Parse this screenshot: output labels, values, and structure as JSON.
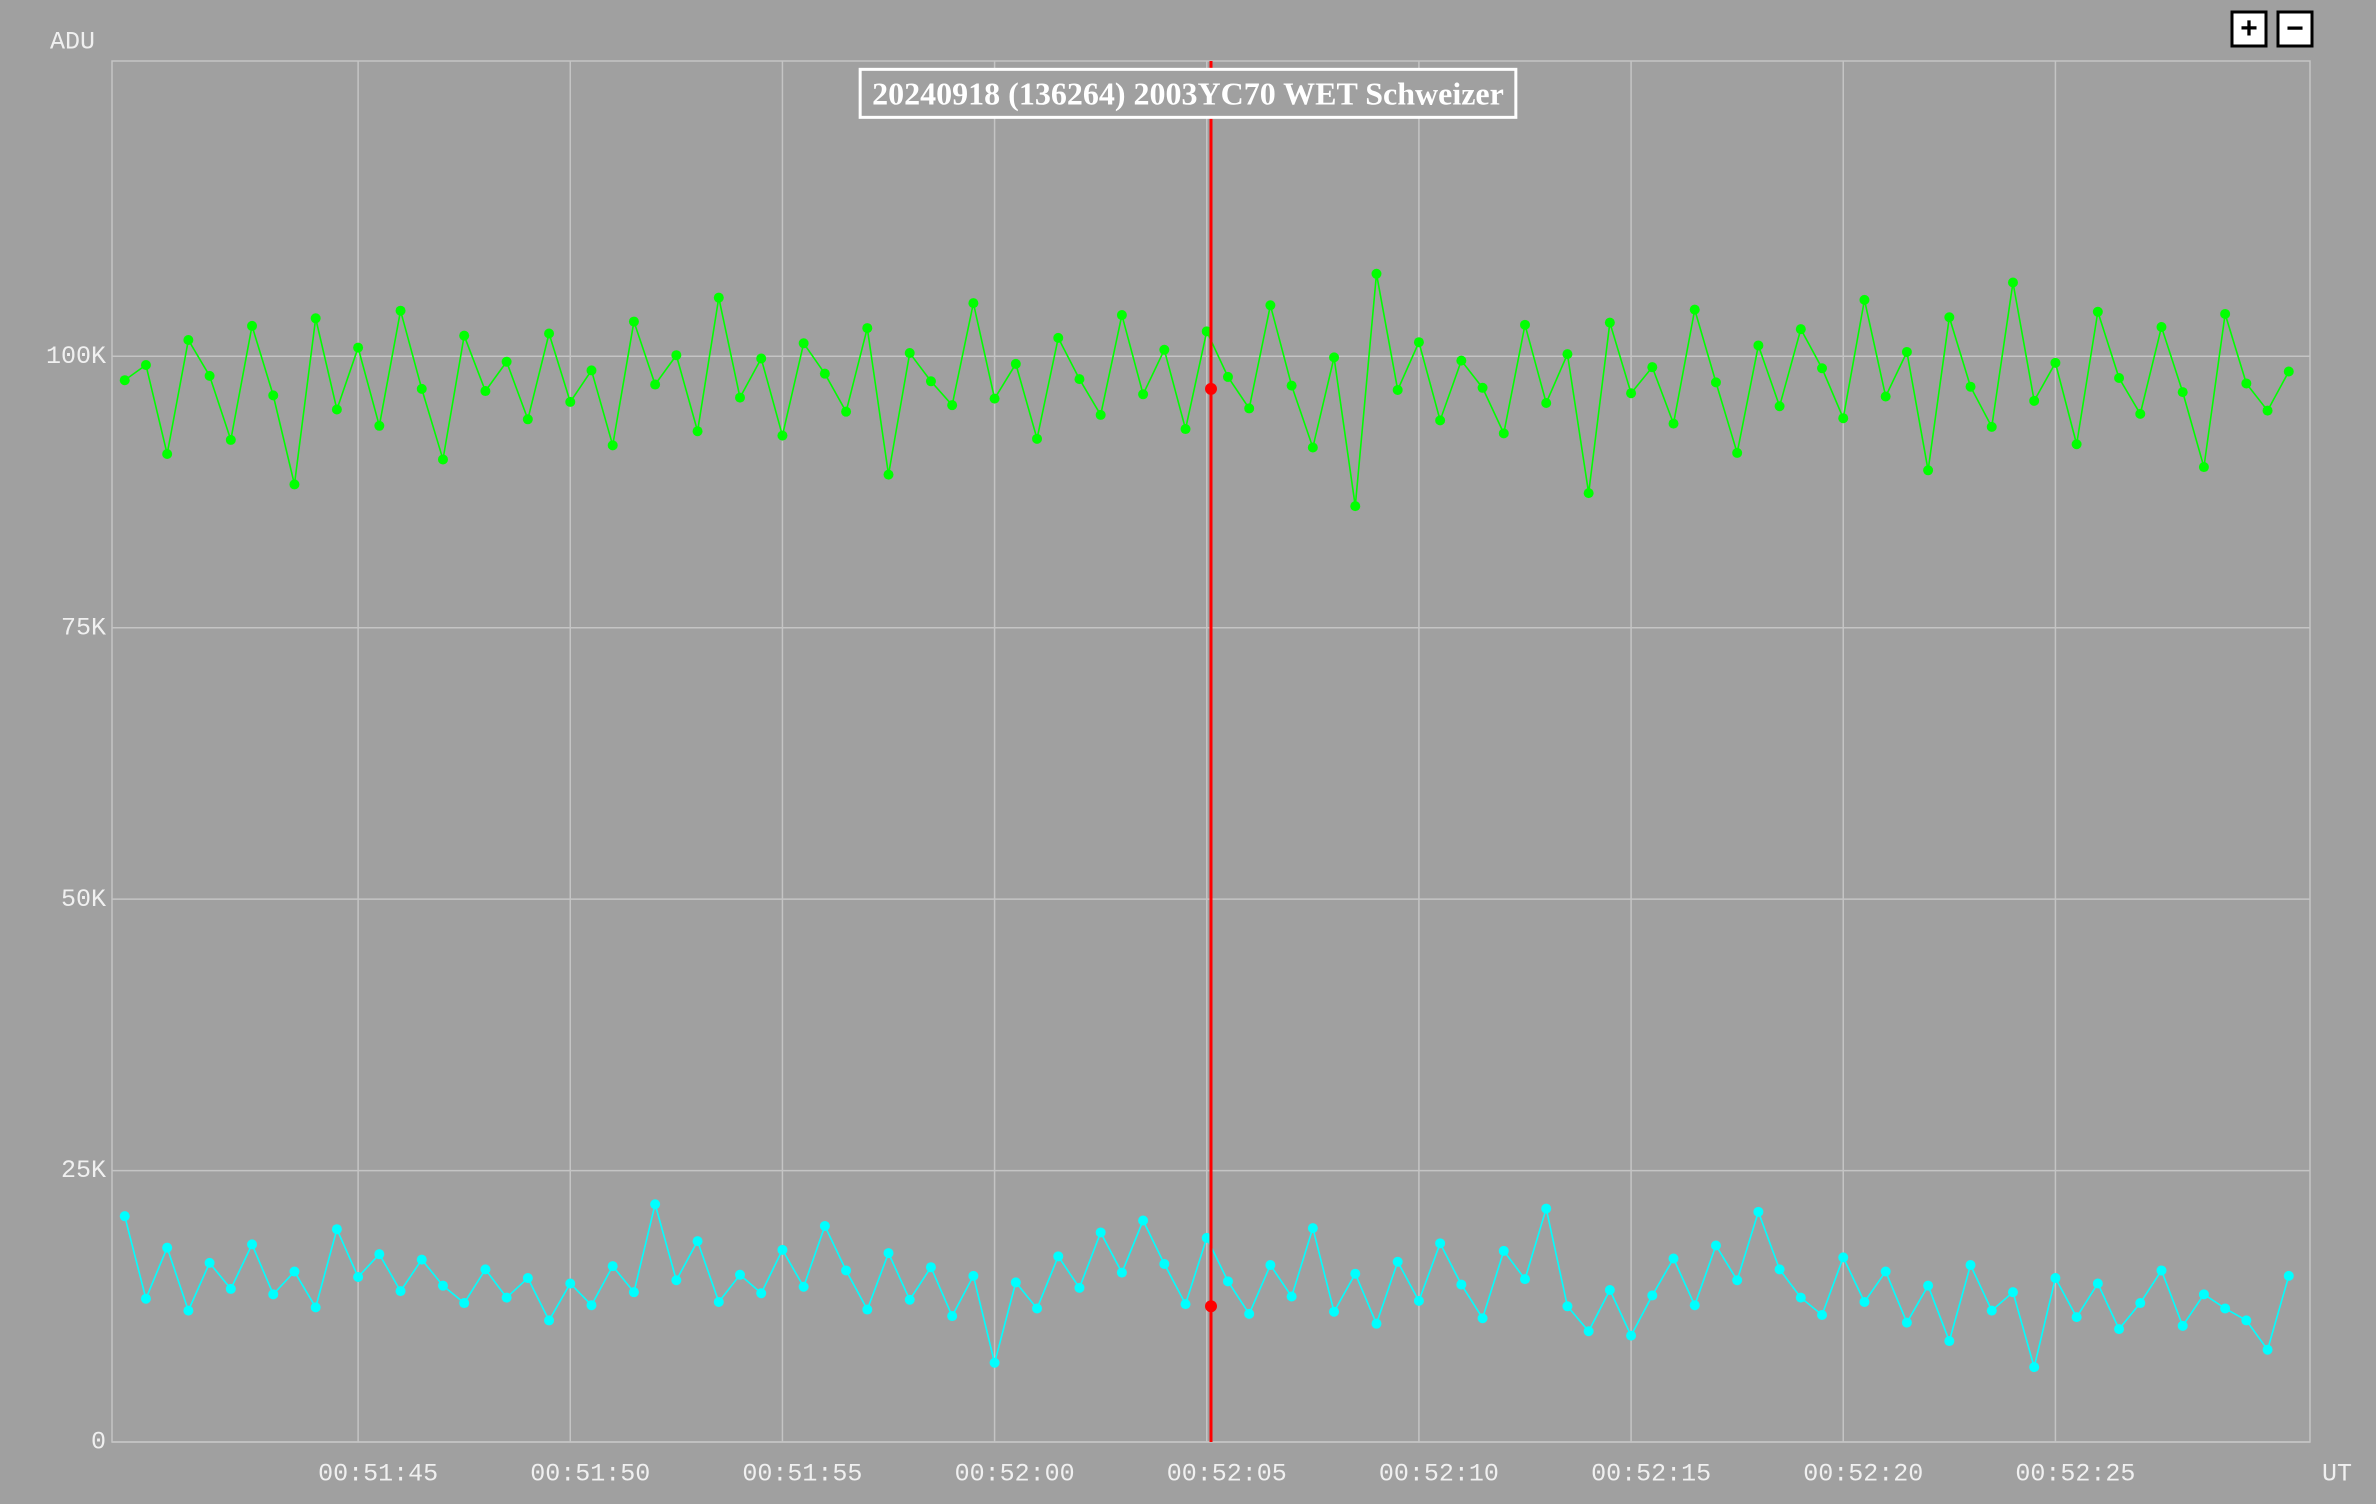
{
  "chart_data": {
    "type": "line",
    "title": "20240918 (136264) 2003YC70 WET Schweizer",
    "y_label": "ADU",
    "x_label": "UT",
    "xlim": [
      3099.2,
      3151
    ],
    "ylim": [
      0,
      127200
    ],
    "xticks": [
      {
        "value": 3105,
        "label": "00:51:45"
      },
      {
        "value": 3110,
        "label": "00:51:50"
      },
      {
        "value": 3115,
        "label": "00:51:55"
      },
      {
        "value": 3120,
        "label": "00:52:00"
      },
      {
        "value": 3125,
        "label": "00:52:05"
      },
      {
        "value": 3130,
        "label": "00:52:10"
      },
      {
        "value": 3135,
        "label": "00:52:15"
      },
      {
        "value": 3140,
        "label": "00:52:20"
      },
      {
        "value": 3145,
        "label": "00:52:25"
      }
    ],
    "yticks": [
      0,
      {
        "value": 25000,
        "label": "25K"
      },
      {
        "value": 50000,
        "label": "50K"
      },
      {
        "value": 75000,
        "label": "75K"
      },
      {
        "value": 100000,
        "label": "100K"
      }
    ],
    "grid": true,
    "markers": true,
    "x": [
      3099.5,
      3100,
      3100.5,
      3101,
      3101.5,
      3102,
      3102.5,
      3103,
      3103.5,
      3104,
      3104.5,
      3105,
      3105.5,
      3106,
      3106.5,
      3107,
      3107.5,
      3108,
      3108.5,
      3109,
      3109.5,
      3110,
      3110.5,
      3111,
      3111.5,
      3112,
      3112.5,
      3113,
      3113.5,
      3114,
      3114.5,
      3115,
      3115.5,
      3116,
      3116.5,
      3117,
      3117.5,
      3118,
      3118.5,
      3119,
      3119.5,
      3120,
      3120.5,
      3121,
      3121.5,
      3122,
      3122.5,
      3123,
      3123.5,
      3124,
      3124.5,
      3125,
      3125.5,
      3126,
      3126.5,
      3127,
      3127.5,
      3128,
      3128.5,
      3129,
      3129.5,
      3130,
      3130.5,
      3131,
      3131.5,
      3132,
      3132.5,
      3133,
      3133.5,
      3134,
      3134.5,
      3135,
      3135.5,
      3136,
      3136.5,
      3137,
      3137.5,
      3138,
      3138.5,
      3139,
      3139.5,
      3140,
      3140.5,
      3141,
      3141.5,
      3142,
      3142.5,
      3143,
      3143.5,
      3144,
      3144.5,
      3145,
      3145.5,
      3146,
      3146.5,
      3147,
      3147.5,
      3148,
      3148.5,
      3149,
      3149.5,
      3150,
      3150.5
    ],
    "series": [
      {
        "color": "#00ff00",
        "values": [
          97800,
          99200,
          91000,
          101500,
          98200,
          92300,
          102800,
          96400,
          88200,
          103500,
          95100,
          100800,
          93600,
          104200,
          97000,
          90500,
          101900,
          96800,
          99500,
          94200,
          102100,
          95800,
          98700,
          91800,
          103200,
          97400,
          100100,
          93100,
          105400,
          96200,
          99800,
          92700,
          101200,
          98400,
          94900,
          102600,
          89100,
          100300,
          97700,
          95500,
          104900,
          96100,
          99300,
          92400,
          101700,
          97900,
          94600,
          103800,
          96500,
          100600,
          93300,
          102300,
          98100,
          95200,
          104700,
          97300,
          91600,
          99900,
          86200,
          107600,
          96900,
          101300,
          94100,
          99600,
          97100,
          92900,
          102900,
          95700,
          100200,
          87400,
          103100,
          96600,
          99000,
          93800,
          104300,
          97600,
          91100,
          101000,
          95400,
          102500,
          98900,
          94300,
          105200,
          96300,
          100400,
          89500,
          103600,
          97200,
          93500,
          106800,
          95900,
          99400,
          91900,
          104100,
          98000,
          94700,
          102700,
          96700,
          89800,
          103900,
          97500,
          95000,
          98600
        ]
      },
      {
        "color": "#00ffff",
        "values": [
          20800,
          13200,
          17900,
          12100,
          16500,
          14100,
          18200,
          13600,
          15700,
          12400,
          19600,
          15200,
          17300,
          13900,
          16800,
          14400,
          12800,
          15900,
          13300,
          15100,
          11200,
          14600,
          12600,
          16200,
          13800,
          21900,
          14900,
          18500,
          12900,
          15400,
          13700,
          17700,
          14300,
          19900,
          15800,
          12200,
          17400,
          13100,
          16100,
          11600,
          15300,
          7300,
          14700,
          12300,
          17100,
          14200,
          19300,
          15600,
          20400,
          16400,
          12700,
          18800,
          14800,
          11800,
          16300,
          13400,
          19700,
          12000,
          15500,
          10900,
          16600,
          13000,
          18300,
          14500,
          11400,
          17600,
          15000,
          21500,
          12500,
          10200,
          14000,
          9800,
          13500,
          16900,
          12600,
          18100,
          14900,
          21200,
          15900,
          13300,
          11700,
          17000,
          12900,
          15700,
          11000,
          14400,
          9300,
          16300,
          12100,
          13800,
          6900,
          15100,
          11500,
          14600,
          10400,
          12800,
          15800,
          10700,
          13600,
          12300,
          11200,
          8500,
          15300
        ]
      }
    ],
    "cursor": {
      "x": 3125.1,
      "color": "#ff0000",
      "values": [
        97000,
        12500
      ]
    }
  },
  "zoom_buttons": [
    "+",
    "−"
  ]
}
